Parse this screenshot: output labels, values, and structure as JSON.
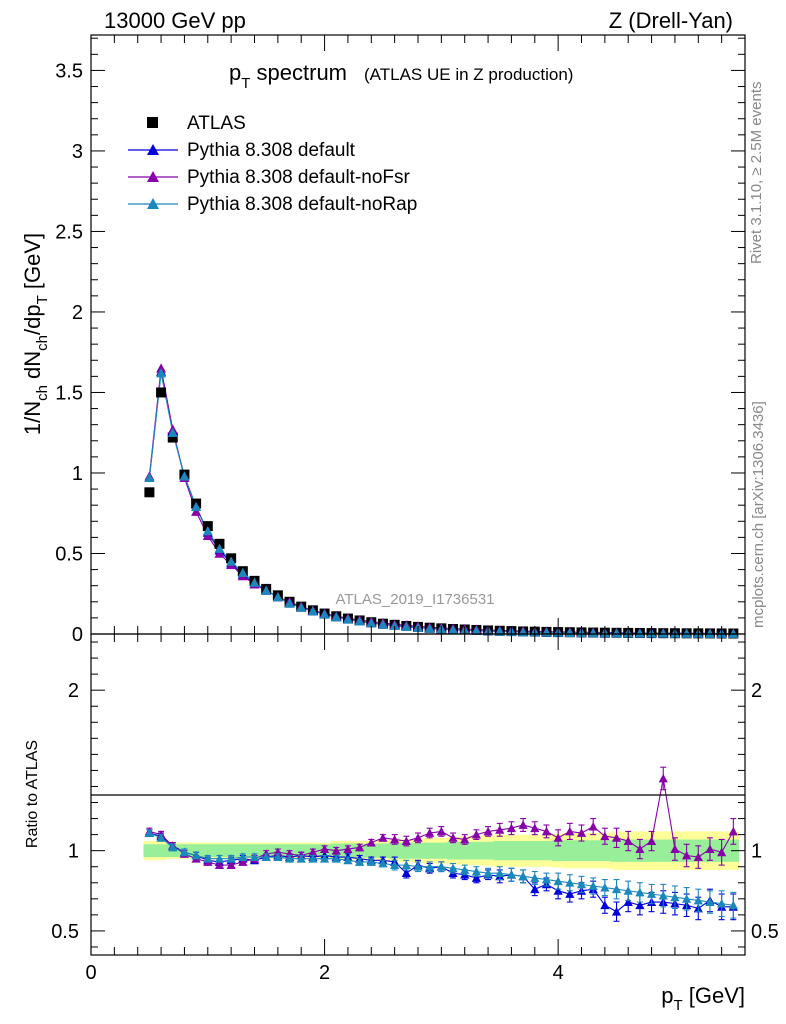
{
  "header": {
    "left": "13000 GeV pp",
    "right": "Z (Drell-Yan)"
  },
  "side": {
    "rivet": "Rivet 3.1.10, ≥ 2.5M events",
    "mcplots": "mcplots.cern.ch [arXiv:1306.3436]"
  },
  "watermark": "ATLAS_2019_I1736531",
  "ratio_ylabel": "Ratio to ATLAS",
  "chart_data": [
    {
      "type": "scatter",
      "title": "p_T spectrum",
      "title_main": "p",
      "title_sub": "T",
      "title_rest": " spectrum",
      "subtitle": "(ATLAS UE in Z production)",
      "xlabel": "p_T [GeV]",
      "ylabel": "1/N_ch dN_ch/dp_T [GeV]",
      "xlim": [
        0,
        5.6
      ],
      "ylim": [
        0,
        3.72
      ],
      "yticks": [
        "0",
        "0.5",
        "1",
        "1.5",
        "2",
        "2.5",
        "3",
        "3.5"
      ],
      "legend_position": "top-left",
      "x": [
        0.5,
        0.6,
        0.7,
        0.8,
        0.9,
        1.0,
        1.1,
        1.2,
        1.3,
        1.4,
        1.5,
        1.6,
        1.7,
        1.8,
        1.9,
        2.0,
        2.1,
        2.2,
        2.3,
        2.4,
        2.5,
        2.6,
        2.7,
        2.8,
        2.9,
        3.0,
        3.1,
        3.2,
        3.3,
        3.4,
        3.5,
        3.6,
        3.7,
        3.8,
        3.9,
        4.0,
        4.1,
        4.2,
        4.3,
        4.4,
        4.5,
        4.6,
        4.7,
        4.8,
        4.9,
        5.0,
        5.1,
        5.2,
        5.3,
        5.4,
        5.5
      ],
      "series": [
        {
          "name": "ATLAS",
          "marker": "square",
          "color": "#000000",
          "values": [
            0.88,
            1.5,
            1.22,
            0.99,
            0.81,
            0.67,
            0.56,
            0.47,
            0.39,
            0.33,
            0.28,
            0.24,
            0.2,
            0.17,
            0.147,
            0.127,
            0.11,
            0.096,
            0.084,
            0.073,
            0.064,
            0.057,
            0.05,
            0.044,
            0.039,
            0.035,
            0.031,
            0.028,
            0.025,
            0.022,
            0.02,
            0.018,
            0.016,
            0.0145,
            0.013,
            0.012,
            0.011,
            0.01,
            0.009,
            0.008,
            0.0074,
            0.0067,
            0.0061,
            0.0056,
            0.0051,
            0.0047,
            0.0043,
            0.004,
            0.0037,
            0.0034,
            0.0031
          ]
        },
        {
          "name": "Pythia 8.308 default",
          "marker": "triangle",
          "color": "#0000dd",
          "values": [
            0.97,
            1.63,
            1.26,
            0.98,
            0.79,
            0.63,
            0.52,
            0.44,
            0.37,
            0.31,
            0.27,
            0.23,
            0.19,
            0.165,
            0.142,
            0.123,
            0.106,
            0.092,
            0.08,
            0.069,
            0.06,
            0.053,
            0.045,
            0.04,
            0.035,
            0.031,
            0.027,
            0.024,
            0.021,
            0.019,
            0.017,
            0.015,
            0.013,
            0.011,
            0.01,
            0.009,
            0.008,
            0.0075,
            0.0068,
            0.0055,
            0.0048,
            0.0045,
            0.0041,
            0.0038,
            0.0035,
            0.0032,
            0.0029,
            0.0026,
            0.0024,
            0.0022,
            0.002
          ]
        },
        {
          "name": "Pythia 8.308 default-noFsr",
          "marker": "triangle",
          "color": "#8800aa",
          "values": [
            0.98,
            1.65,
            1.27,
            0.97,
            0.76,
            0.61,
            0.5,
            0.43,
            0.36,
            0.31,
            0.27,
            0.23,
            0.2,
            0.17,
            0.147,
            0.127,
            0.111,
            0.098,
            0.087,
            0.077,
            0.068,
            0.06,
            0.054,
            0.048,
            0.043,
            0.038,
            0.034,
            0.031,
            0.028,
            0.025,
            0.022,
            0.02,
            0.018,
            0.016,
            0.015,
            0.013,
            0.012,
            0.011,
            0.01,
            0.009,
            0.008,
            0.007,
            0.006,
            0.006,
            0.005,
            0.005,
            0.004,
            0.004,
            0.004,
            0.003,
            0.003
          ]
        },
        {
          "name": "Pythia 8.308 default-noRap",
          "marker": "triangle",
          "color": "#1a88bb",
          "values": [
            0.97,
            1.62,
            1.25,
            0.98,
            0.79,
            0.64,
            0.53,
            0.45,
            0.38,
            0.32,
            0.27,
            0.23,
            0.19,
            0.165,
            0.142,
            0.122,
            0.105,
            0.091,
            0.079,
            0.068,
            0.059,
            0.051,
            0.045,
            0.039,
            0.034,
            0.03,
            0.026,
            0.023,
            0.02,
            0.018,
            0.016,
            0.014,
            0.012,
            0.011,
            0.01,
            0.009,
            0.008,
            0.007,
            0.006,
            0.006,
            0.005,
            0.005,
            0.004,
            0.004,
            0.004,
            0.003,
            0.003,
            0.003,
            0.002,
            0.002,
            0.002
          ]
        }
      ]
    },
    {
      "type": "scatter",
      "xlabel": "p_T [GeV]",
      "ylabel": "Ratio to ATLAS",
      "xlim": [
        0,
        5.6
      ],
      "ylim": [
        0.35,
        2.35
      ],
      "xticks": [
        "0",
        "2",
        "4"
      ],
      "yticks": [
        "0.5",
        "1",
        "2"
      ],
      "x": [
        0.5,
        0.6,
        0.7,
        0.8,
        0.9,
        1.0,
        1.1,
        1.2,
        1.3,
        1.4,
        1.5,
        1.6,
        1.7,
        1.8,
        1.9,
        2.0,
        2.1,
        2.2,
        2.3,
        2.4,
        2.5,
        2.6,
        2.7,
        2.8,
        2.9,
        3.0,
        3.1,
        3.2,
        3.3,
        3.4,
        3.5,
        3.6,
        3.7,
        3.8,
        3.9,
        4.0,
        4.1,
        4.2,
        4.3,
        4.4,
        4.5,
        4.6,
        4.7,
        4.8,
        4.9,
        5.0,
        5.1,
        5.2,
        5.3,
        5.4,
        5.5
      ],
      "bands": {
        "inner": [
          0.04,
          0.04,
          0.04,
          0.04,
          0.04,
          0.04,
          0.04,
          0.04,
          0.04,
          0.04,
          0.04,
          0.04,
          0.04,
          0.04,
          0.04,
          0.04,
          0.045,
          0.045,
          0.045,
          0.045,
          0.045,
          0.05,
          0.05,
          0.05,
          0.05,
          0.05,
          0.055,
          0.055,
          0.055,
          0.055,
          0.06,
          0.06,
          0.06,
          0.06,
          0.06,
          0.065,
          0.065,
          0.065,
          0.065,
          0.065,
          0.07,
          0.07,
          0.07,
          0.07,
          0.07,
          0.07,
          0.07,
          0.07,
          0.07,
          0.07,
          0.07
        ],
        "outer": [
          0.06,
          0.06,
          0.05,
          0.05,
          0.05,
          0.05,
          0.05,
          0.05,
          0.05,
          0.05,
          0.05,
          0.05,
          0.05,
          0.05,
          0.05,
          0.05,
          0.06,
          0.06,
          0.06,
          0.06,
          0.065,
          0.07,
          0.07,
          0.075,
          0.08,
          0.08,
          0.085,
          0.09,
          0.09,
          0.095,
          0.1,
          0.1,
          0.1,
          0.1,
          0.1,
          0.105,
          0.11,
          0.11,
          0.11,
          0.11,
          0.12,
          0.12,
          0.12,
          0.12,
          0.12,
          0.12,
          0.12,
          0.12,
          0.12,
          0.12,
          0.12
        ]
      },
      "series": [
        {
          "name": "Pythia 8.308 default",
          "color": "#0000dd",
          "values": [
            1.11,
            1.09,
            1.03,
            0.99,
            0.97,
            0.94,
            0.93,
            0.94,
            0.95,
            0.94,
            0.96,
            0.97,
            0.96,
            0.97,
            0.96,
            0.97,
            0.96,
            0.96,
            0.95,
            0.94,
            0.94,
            0.93,
            0.86,
            0.91,
            0.89,
            0.9,
            0.86,
            0.85,
            0.83,
            0.85,
            0.84,
            0.85,
            0.84,
            0.76,
            0.79,
            0.75,
            0.73,
            0.75,
            0.76,
            0.66,
            0.62,
            0.68,
            0.66,
            0.68,
            0.68,
            0.67,
            0.66,
            0.64,
            0.69,
            0.65,
            0.65
          ],
          "errors": [
            0.02,
            0.02,
            0.02,
            0.02,
            0.02,
            0.02,
            0.02,
            0.02,
            0.02,
            0.02,
            0.02,
            0.02,
            0.02,
            0.02,
            0.02,
            0.02,
            0.02,
            0.02,
            0.02,
            0.02,
            0.02,
            0.03,
            0.03,
            0.03,
            0.03,
            0.03,
            0.03,
            0.03,
            0.03,
            0.03,
            0.04,
            0.04,
            0.04,
            0.04,
            0.04,
            0.05,
            0.05,
            0.05,
            0.05,
            0.05,
            0.06,
            0.06,
            0.06,
            0.06,
            0.07,
            0.07,
            0.07,
            0.07,
            0.07,
            0.08,
            0.08
          ]
        },
        {
          "name": "Pythia 8.308 default-noFsr",
          "color": "#8800aa",
          "values": [
            1.12,
            1.1,
            1.03,
            0.98,
            0.95,
            0.93,
            0.91,
            0.91,
            0.93,
            0.95,
            0.98,
            0.99,
            0.98,
            0.97,
            0.99,
            1.01,
            1.0,
            1.01,
            1.02,
            1.05,
            1.08,
            1.07,
            1.06,
            1.08,
            1.11,
            1.12,
            1.08,
            1.07,
            1.1,
            1.12,
            1.13,
            1.14,
            1.16,
            1.14,
            1.12,
            1.08,
            1.12,
            1.11,
            1.15,
            1.09,
            1.08,
            1.06,
            1.01,
            1.06,
            1.45,
            1.01,
            0.97,
            0.96,
            1.01,
            0.99,
            1.12
          ],
          "errors": [
            0.02,
            0.02,
            0.02,
            0.02,
            0.02,
            0.02,
            0.02,
            0.02,
            0.02,
            0.02,
            0.02,
            0.02,
            0.02,
            0.02,
            0.02,
            0.02,
            0.02,
            0.02,
            0.02,
            0.02,
            0.02,
            0.03,
            0.03,
            0.03,
            0.03,
            0.03,
            0.03,
            0.03,
            0.03,
            0.03,
            0.04,
            0.04,
            0.04,
            0.04,
            0.04,
            0.05,
            0.05,
            0.05,
            0.05,
            0.05,
            0.06,
            0.06,
            0.06,
            0.06,
            0.07,
            0.07,
            0.07,
            0.07,
            0.07,
            0.08,
            0.08
          ]
        },
        {
          "name": "Pythia 8.308 default-noRap",
          "color": "#1a88bb",
          "values": [
            1.11,
            1.08,
            1.02,
            0.99,
            0.97,
            0.95,
            0.95,
            0.95,
            0.96,
            0.96,
            0.96,
            0.96,
            0.95,
            0.95,
            0.95,
            0.95,
            0.95,
            0.94,
            0.93,
            0.93,
            0.92,
            0.91,
            0.91,
            0.9,
            0.9,
            0.9,
            0.89,
            0.88,
            0.87,
            0.86,
            0.86,
            0.85,
            0.84,
            0.83,
            0.82,
            0.81,
            0.8,
            0.79,
            0.78,
            0.77,
            0.76,
            0.75,
            0.74,
            0.73,
            0.72,
            0.71,
            0.7,
            0.69,
            0.68,
            0.67,
            0.66
          ],
          "errors": [
            0.02,
            0.02,
            0.02,
            0.02,
            0.02,
            0.02,
            0.02,
            0.02,
            0.02,
            0.02,
            0.02,
            0.02,
            0.02,
            0.02,
            0.02,
            0.02,
            0.02,
            0.02,
            0.02,
            0.02,
            0.02,
            0.03,
            0.03,
            0.03,
            0.03,
            0.03,
            0.03,
            0.03,
            0.03,
            0.03,
            0.04,
            0.04,
            0.04,
            0.04,
            0.04,
            0.05,
            0.05,
            0.05,
            0.05,
            0.05,
            0.06,
            0.06,
            0.06,
            0.06,
            0.07,
            0.07,
            0.07,
            0.07,
            0.07,
            0.08,
            0.08
          ]
        }
      ]
    }
  ]
}
